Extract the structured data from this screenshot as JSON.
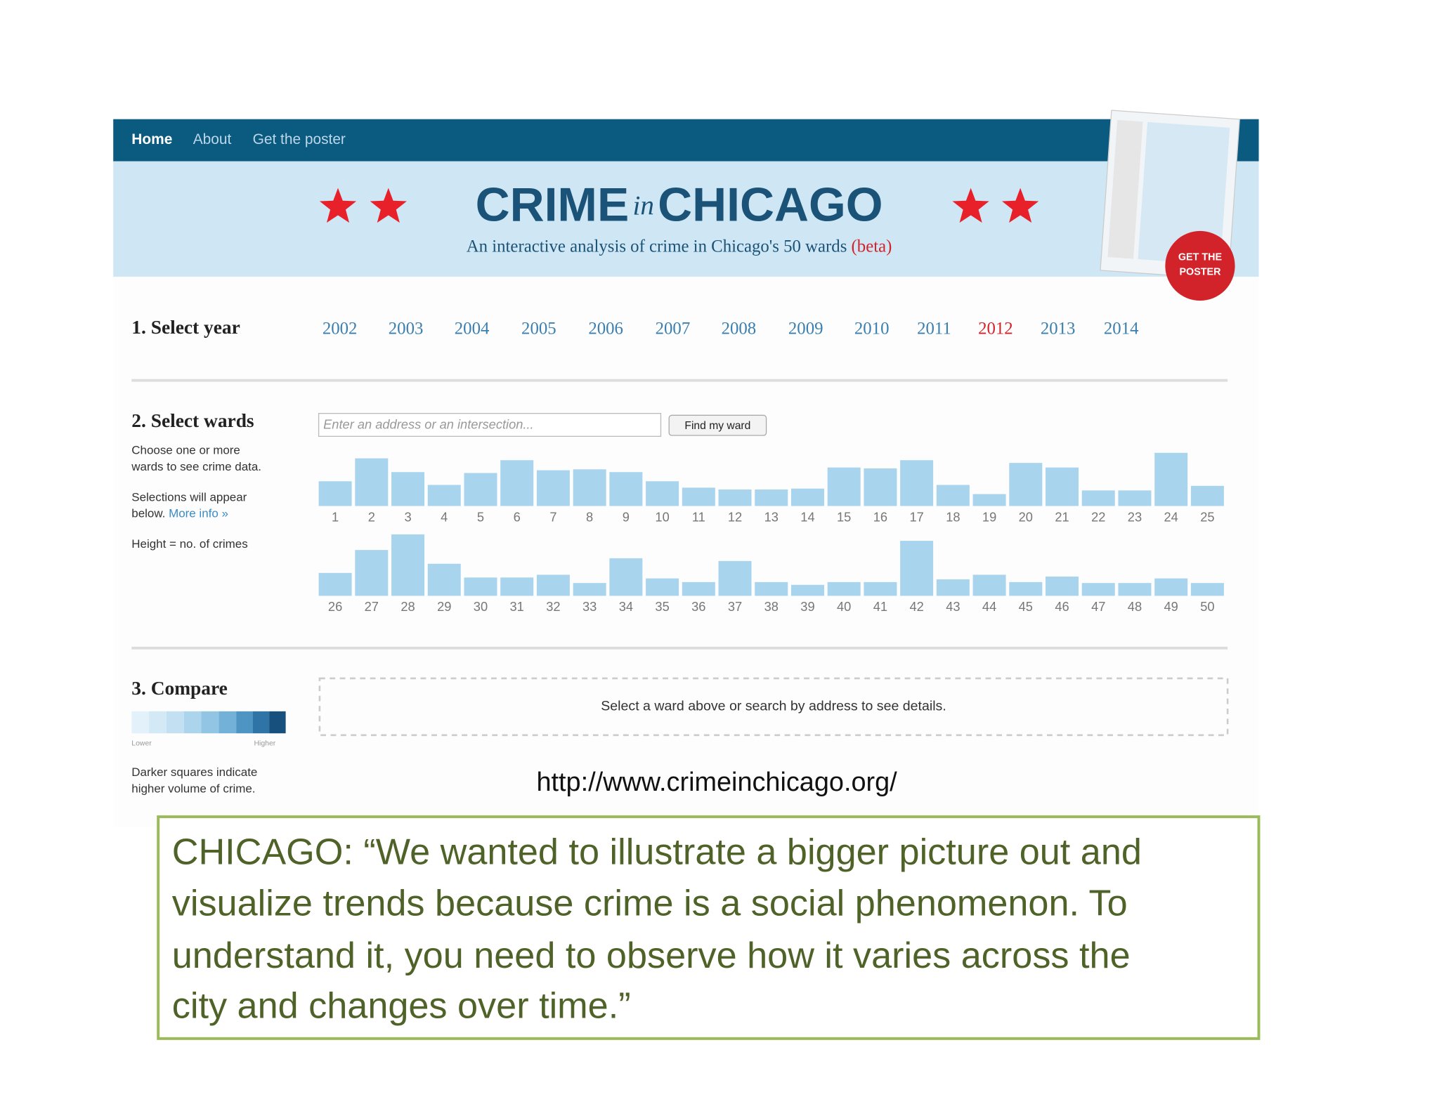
{
  "nav": [
    "Home",
    "About",
    "Get the poster"
  ],
  "header": {
    "title_main": "CRIME",
    "title_in": "in",
    "title_city": "CHICAGO",
    "subtitle": "An interactive analysis of crime in Chicago's 50 wards",
    "beta": "(beta)",
    "badge": [
      "GET THE",
      "POSTER"
    ]
  },
  "year_section": {
    "heading": "1. Select year",
    "years": [
      "2002",
      "2003",
      "2004",
      "2005",
      "2006",
      "2007",
      "2008",
      "2009",
      "2010",
      "2011",
      "2012",
      "2013",
      "2014"
    ],
    "selected_year": "2012"
  },
  "ward_section": {
    "heading": "2. Select wards",
    "placeholder": "Enter an address or an intersection...",
    "button": "Find my ward",
    "help": [
      "Choose one or more",
      "wards to see crime data.",
      "Selections will appear",
      "below."
    ],
    "more_info": "More info »",
    "height_note": "Height = no. of crimes",
    "labels": [
      1,
      2,
      3,
      4,
      5,
      6,
      7,
      8,
      9,
      10,
      11,
      12,
      13,
      14,
      15,
      16,
      17,
      18,
      19,
      20,
      21,
      22,
      23,
      24,
      25,
      26,
      27,
      28,
      29,
      30,
      31,
      32,
      33,
      34,
      35,
      36,
      37,
      38,
      39,
      40,
      41,
      42,
      43,
      44,
      45,
      46,
      47,
      48,
      49,
      50
    ],
    "heights": [
      27,
      52,
      37,
      23,
      36,
      50,
      39,
      40,
      37,
      27,
      20,
      18,
      18,
      19,
      42,
      41,
      50,
      23,
      13,
      47,
      42,
      17,
      17,
      58,
      22,
      25,
      50,
      67,
      35,
      20,
      20,
      23,
      14,
      41,
      19,
      15,
      38,
      15,
      12,
      15,
      15,
      60,
      18,
      23,
      15,
      21,
      14,
      14,
      19,
      14
    ]
  },
  "compare_section": {
    "heading": "3. Compare",
    "lower": "Lower",
    "higher": "Higher",
    "help": [
      "Darker squares indicate",
      "higher volume of crime."
    ],
    "details": "Select a ward above or search by address to see details."
  },
  "url": "http://www.crimeinchicago.org/",
  "quote": [
    "CHICAGO: “We wanted to illustrate a bigger picture out and",
    "visualize trends because crime is a social phenomenon. To",
    "understand it, you need to observe how it varies across the",
    "city and changes over time.”"
  ]
}
